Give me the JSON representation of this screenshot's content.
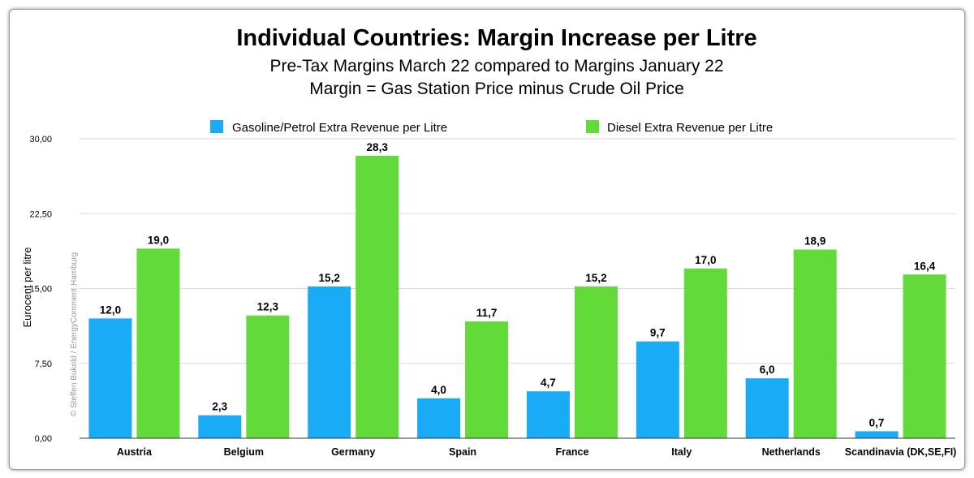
{
  "chart_data": {
    "type": "bar",
    "title": "Individual Countries: Margin Increase per Litre",
    "subtitle_lines": [
      "Pre-Tax Margins March 22 compared to Margins January 22",
      "Margin = Gas Station Price minus Crude Oil Price"
    ],
    "ylabel": "Eurocent per litre",
    "xlabel": "",
    "ylim": [
      0,
      30
    ],
    "yticks": [
      "0,00",
      "7,50",
      "15,00",
      "22,50",
      "30,00"
    ],
    "ytick_values": [
      0,
      7.5,
      15,
      22.5,
      30
    ],
    "grid": true,
    "legend_position": "top",
    "categories": [
      "Austria",
      "Belgium",
      "Germany",
      "Spain",
      "France",
      "Italy",
      "Netherlands",
      "Scandinavia (DK,SE,FI)"
    ],
    "series": [
      {
        "name": "Gasoline/Petrol Extra Revenue per Litre",
        "color": "#1AABF7",
        "values": [
          12.0,
          2.3,
          15.2,
          4.0,
          4.7,
          9.7,
          6.0,
          0.7
        ],
        "labels": [
          "12,0",
          "2,3",
          "15,2",
          "4,0",
          "4,7",
          "9,7",
          "6,0",
          "0,7"
        ]
      },
      {
        "name": "Diesel Extra Revenue per Litre",
        "color": "#62DA3A",
        "values": [
          19.0,
          12.3,
          28.3,
          11.7,
          15.2,
          17.0,
          18.9,
          16.4
        ],
        "labels": [
          "19,0",
          "12,3",
          "28,3",
          "11,7",
          "15,2",
          "17,0",
          "18,9",
          "16,4"
        ]
      }
    ],
    "credit": "© Steffen Bukold / EnergyComment Hamburg"
  }
}
